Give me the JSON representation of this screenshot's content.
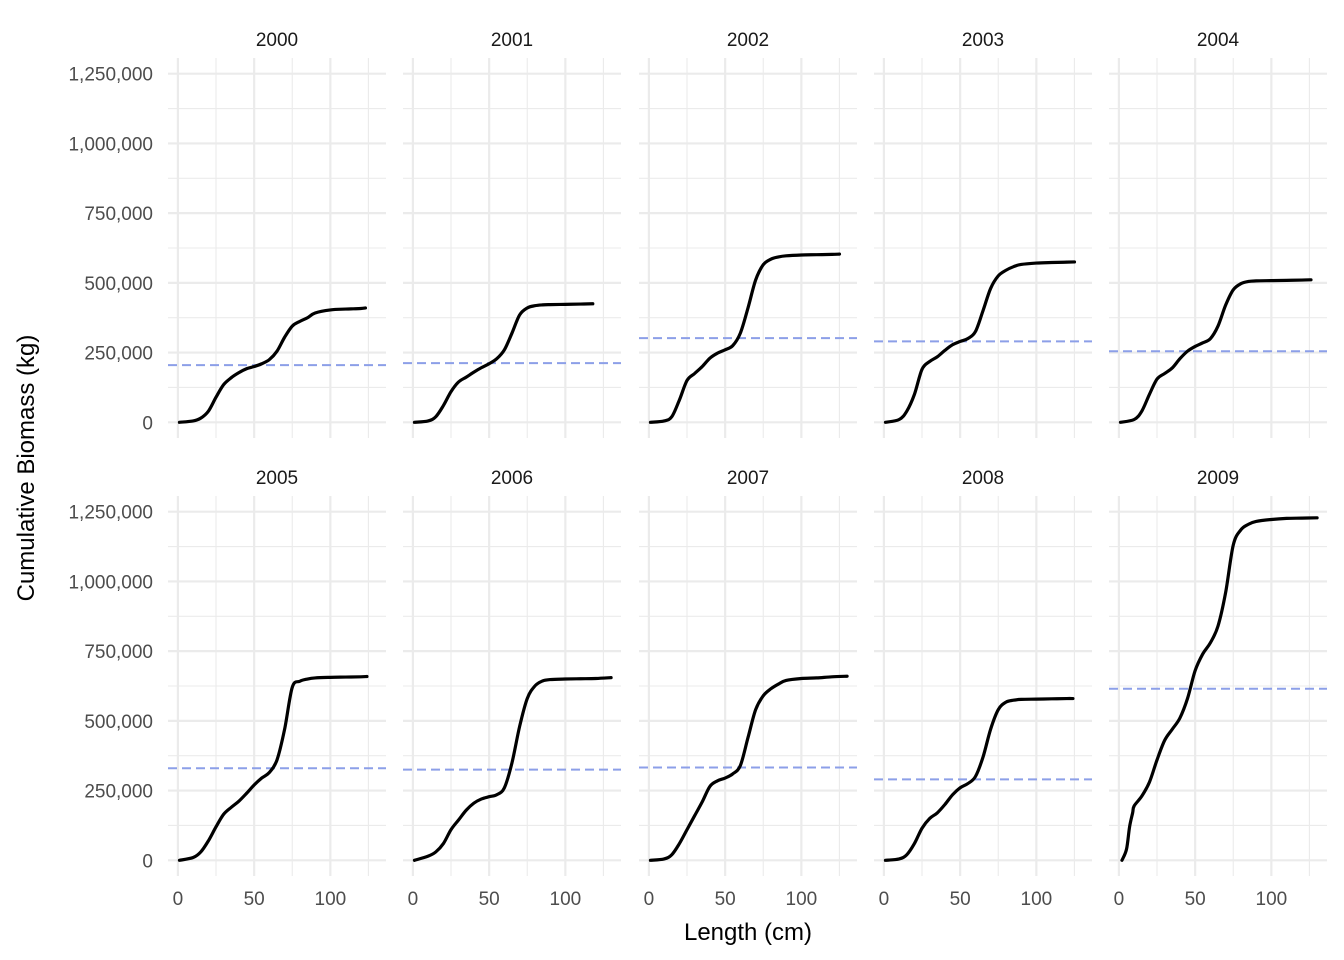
{
  "chart_data": {
    "type": "line",
    "facet_by": "year",
    "layout": "5 columns x 2 rows",
    "xlabel": "Length (cm)",
    "ylabel": "Cumulative Biomass (kg)",
    "xlim": [
      0,
      130
    ],
    "ylim": [
      0,
      1250000
    ],
    "x_ticks": [
      0,
      50,
      100
    ],
    "y_ticks": [
      0,
      250000,
      500000,
      750000,
      1000000,
      1250000
    ],
    "y_tick_labels": [
      "0",
      "250,000",
      "500,000",
      "750,000",
      "1,000,000",
      "1,250,000"
    ],
    "grid": "on",
    "line_color": "#000000",
    "reference_line_color": "#8c9fe8",
    "reference_line_style": "dashed",
    "facets": [
      {
        "label": "2000",
        "reference_y": 205000,
        "x": [
          1,
          10,
          15,
          20,
          25,
          30,
          35,
          40,
          45,
          50,
          55,
          60,
          65,
          70,
          75,
          80,
          85,
          90,
          100,
          110,
          115,
          120,
          123
        ],
        "y": [
          0,
          5000,
          15000,
          40000,
          90000,
          135000,
          160000,
          178000,
          192000,
          200000,
          210000,
          225000,
          255000,
          305000,
          345000,
          362000,
          375000,
          392000,
          403000,
          406000,
          407000,
          408000,
          410000
        ]
      },
      {
        "label": "2001",
        "reference_y": 212000,
        "x": [
          1,
          10,
          15,
          20,
          25,
          30,
          35,
          40,
          45,
          50,
          55,
          60,
          65,
          70,
          75,
          80,
          85,
          90,
          100,
          110,
          118
        ],
        "y": [
          0,
          5000,
          20000,
          60000,
          110000,
          145000,
          162000,
          180000,
          196000,
          210000,
          228000,
          260000,
          320000,
          385000,
          410000,
          418000,
          421000,
          422000,
          423000,
          424000,
          425000
        ]
      },
      {
        "label": "2002",
        "reference_y": 302000,
        "x": [
          1,
          10,
          15,
          20,
          25,
          30,
          35,
          40,
          45,
          50,
          55,
          60,
          65,
          70,
          75,
          80,
          85,
          90,
          100,
          110,
          120,
          125
        ],
        "y": [
          0,
          5000,
          20000,
          80000,
          150000,
          175000,
          200000,
          230000,
          248000,
          260000,
          275000,
          320000,
          410000,
          510000,
          565000,
          585000,
          593000,
          597000,
          600000,
          601000,
          602000,
          603000
        ]
      },
      {
        "label": "2003",
        "reference_y": 290000,
        "x": [
          1,
          10,
          15,
          20,
          25,
          30,
          35,
          40,
          45,
          50,
          55,
          60,
          65,
          70,
          75,
          80,
          85,
          90,
          100,
          110,
          118,
          125
        ],
        "y": [
          0,
          10000,
          40000,
          100000,
          190000,
          218000,
          235000,
          258000,
          278000,
          290000,
          300000,
          325000,
          400000,
          480000,
          525000,
          545000,
          558000,
          566000,
          571000,
          573000,
          574000,
          575000
        ]
      },
      {
        "label": "2004",
        "reference_y": 255000,
        "x": [
          1,
          10,
          15,
          20,
          25,
          30,
          35,
          40,
          45,
          50,
          55,
          60,
          65,
          70,
          75,
          80,
          85,
          90,
          100,
          110,
          120,
          126
        ],
        "y": [
          0,
          10000,
          40000,
          100000,
          155000,
          175000,
          195000,
          228000,
          255000,
          272000,
          285000,
          300000,
          345000,
          420000,
          475000,
          497000,
          505000,
          507000,
          508000,
          509000,
          510000,
          511000
        ]
      },
      {
        "label": "2005",
        "reference_y": 330000,
        "x": [
          1,
          10,
          15,
          20,
          25,
          30,
          35,
          40,
          45,
          50,
          55,
          60,
          65,
          70,
          75,
          80,
          85,
          90,
          100,
          110,
          120,
          124
        ],
        "y": [
          0,
          10000,
          30000,
          70000,
          120000,
          165000,
          190000,
          212000,
          240000,
          270000,
          295000,
          315000,
          360000,
          470000,
          620000,
          642000,
          650000,
          654000,
          656000,
          657000,
          658000,
          659000
        ]
      },
      {
        "label": "2006",
        "reference_y": 325000,
        "x": [
          1,
          10,
          15,
          20,
          25,
          30,
          35,
          40,
          45,
          50,
          55,
          60,
          65,
          70,
          75,
          80,
          85,
          90,
          100,
          110,
          120,
          130
        ],
        "y": [
          0,
          15000,
          30000,
          60000,
          110000,
          145000,
          180000,
          205000,
          220000,
          228000,
          235000,
          260000,
          350000,
          480000,
          580000,
          625000,
          643000,
          648000,
          650000,
          651000,
          652000,
          655000
        ]
      },
      {
        "label": "2007",
        "reference_y": 333000,
        "x": [
          1,
          10,
          15,
          20,
          25,
          30,
          35,
          40,
          45,
          50,
          55,
          60,
          65,
          70,
          75,
          80,
          85,
          90,
          100,
          110,
          120,
          130
        ],
        "y": [
          0,
          5000,
          20000,
          60000,
          110000,
          160000,
          210000,
          265000,
          285000,
          295000,
          310000,
          340000,
          440000,
          540000,
          590000,
          615000,
          632000,
          645000,
          652000,
          654000,
          658000,
          660000
        ]
      },
      {
        "label": "2008",
        "reference_y": 290000,
        "x": [
          1,
          10,
          15,
          20,
          25,
          30,
          35,
          40,
          45,
          50,
          55,
          60,
          65,
          70,
          75,
          80,
          85,
          90,
          100,
          110,
          120,
          124
        ],
        "y": [
          0,
          5000,
          20000,
          60000,
          115000,
          150000,
          170000,
          200000,
          235000,
          260000,
          275000,
          300000,
          370000,
          470000,
          540000,
          567000,
          574000,
          577000,
          578000,
          579000,
          580000,
          580000
        ]
      },
      {
        "label": "2009",
        "reference_y": 615000,
        "x": [
          2,
          5,
          7,
          9,
          10,
          15,
          20,
          25,
          30,
          35,
          40,
          45,
          50,
          55,
          60,
          65,
          70,
          75,
          80,
          85,
          90,
          100,
          110,
          120,
          130
        ],
        "y": [
          0,
          40000,
          120000,
          170000,
          195000,
          230000,
          280000,
          360000,
          430000,
          470000,
          510000,
          580000,
          680000,
          740000,
          780000,
          840000,
          960000,
          1130000,
          1185000,
          1205000,
          1215000,
          1222000,
          1226000,
          1227000,
          1228000
        ]
      }
    ]
  }
}
